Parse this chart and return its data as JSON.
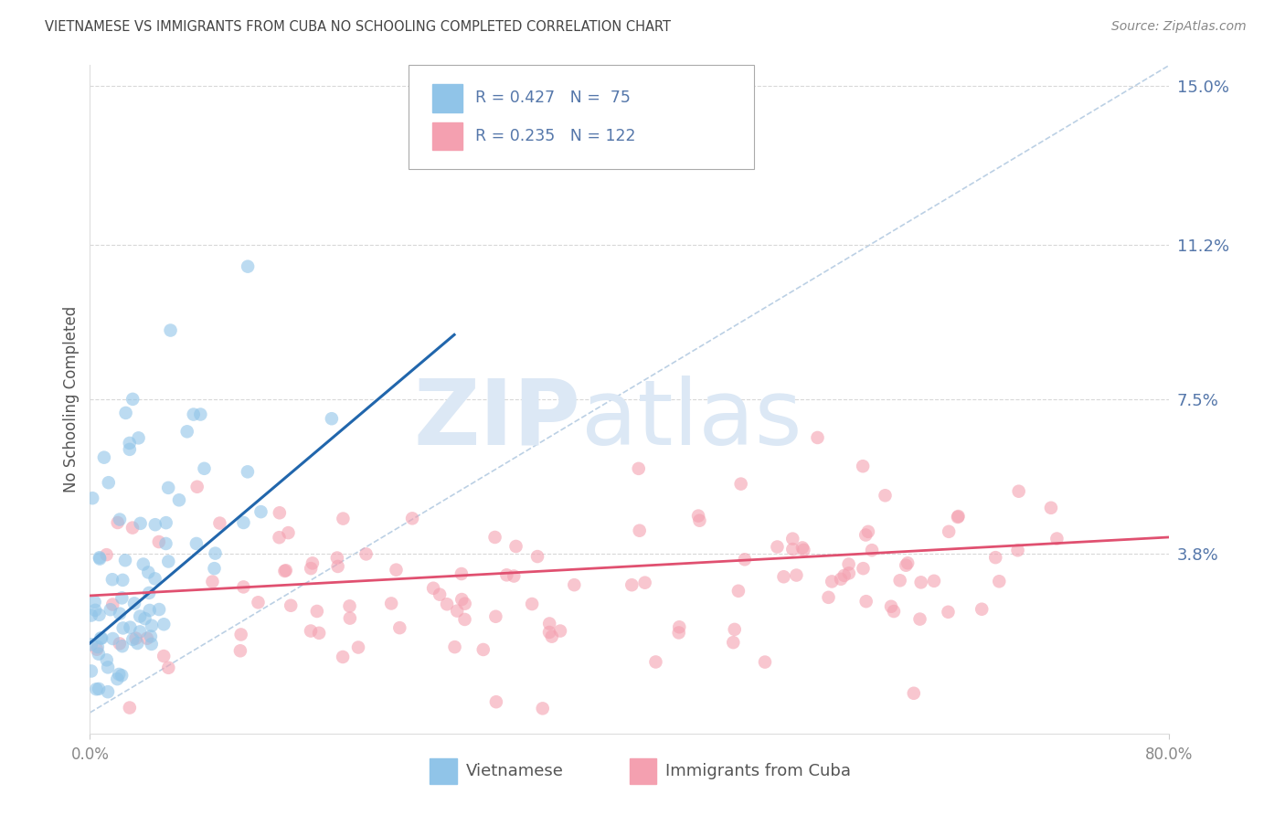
{
  "title": "VIETNAMESE VS IMMIGRANTS FROM CUBA NO SCHOOLING COMPLETED CORRELATION CHART",
  "source": "Source: ZipAtlas.com",
  "ylabel": "No Schooling Completed",
  "xlim": [
    0.0,
    0.8
  ],
  "ylim": [
    -0.005,
    0.155
  ],
  "blue_color": "#90c4e8",
  "pink_color": "#f4a0b0",
  "blue_line_color": "#2166ac",
  "pink_line_color": "#e05070",
  "diag_color": "#b0c8e0",
  "grid_color": "#d8d8d8",
  "watermark_color": "#dce8f5",
  "axis_label_color": "#5577aa",
  "tick_label_color": "#888888",
  "R_blue": 0.427,
  "N_blue": 75,
  "R_pink": 0.235,
  "N_pink": 122
}
